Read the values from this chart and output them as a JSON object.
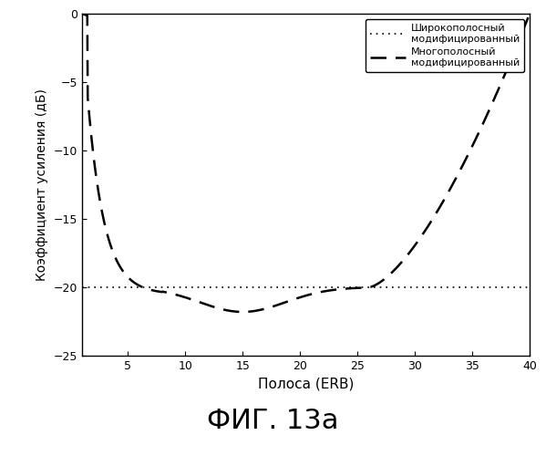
{
  "title": "ФИГ. 13а",
  "xlabel": "Полоса (ERB)",
  "ylabel": "Коэффициент усиления (дБ)",
  "xlim": [
    1,
    40
  ],
  "ylim": [
    -25,
    0
  ],
  "xticks": [
    5,
    10,
    15,
    20,
    25,
    30,
    35,
    40
  ],
  "yticks": [
    0,
    -5,
    -10,
    -15,
    -20,
    -25
  ],
  "legend_entries": [
    "Широкополосный\nмодифицированный",
    "Многополосный\nмодифицированный"
  ],
  "background_color": "#ffffff"
}
